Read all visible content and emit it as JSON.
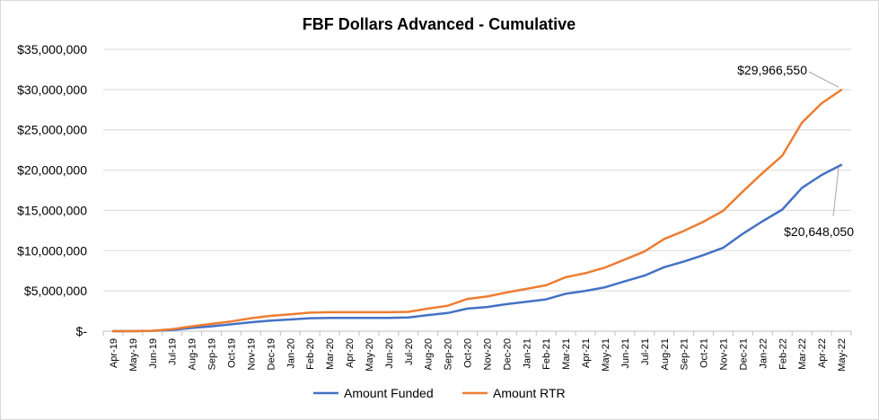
{
  "chart_data": {
    "type": "line",
    "title": "FBF Dollars Advanced - Cumulative",
    "xlabel": "",
    "ylabel": "",
    "ylim": [
      0,
      35000000
    ],
    "ytick_values": [
      0,
      5000000,
      10000000,
      15000000,
      20000000,
      25000000,
      30000000,
      35000000
    ],
    "ytick_labels": [
      "$-",
      "$5,000,000",
      "$10,000,000",
      "$15,000,000",
      "$20,000,000",
      "$25,000,000",
      "$30,000,000",
      "$35,000,000"
    ],
    "categories": [
      "Apr-19",
      "May-19",
      "Jun-19",
      "Jul-19",
      "Aug-19",
      "Sep-19",
      "Oct-19",
      "Nov-19",
      "Dec-19",
      "Jan-20",
      "Feb-20",
      "Mar-20",
      "Apr-20",
      "May-20",
      "Jun-20",
      "Jul-20",
      "Aug-20",
      "Sep-20",
      "Oct-20",
      "Nov-20",
      "Dec-20",
      "Jan-21",
      "Feb-21",
      "Mar-21",
      "Apr-21",
      "May-21",
      "Jun-21",
      "Jul-21",
      "Aug-21",
      "Sep-21",
      "Oct-21",
      "Nov-21",
      "Dec-21",
      "Jan-22",
      "Feb-22",
      "Mar-22",
      "Apr-22",
      "May-22"
    ],
    "series": [
      {
        "name": "Amount Funded",
        "color": "#4472c4",
        "values": [
          0,
          0,
          50000,
          150000,
          400000,
          600000,
          850000,
          1100000,
          1300000,
          1450000,
          1600000,
          1650000,
          1650000,
          1650000,
          1650000,
          1700000,
          2000000,
          2250000,
          2800000,
          3000000,
          3350000,
          3650000,
          3950000,
          4650000,
          5000000,
          5450000,
          6200000,
          6900000,
          7950000,
          8650000,
          9450000,
          10350000,
          12100000,
          13650000,
          15100000,
          17800000,
          19400000,
          20648050
        ]
      },
      {
        "name": "Amount RTR",
        "color": "#ed7d31",
        "values": [
          0,
          0,
          50000,
          250000,
          600000,
          900000,
          1200000,
          1600000,
          1900000,
          2100000,
          2300000,
          2350000,
          2350000,
          2350000,
          2350000,
          2400000,
          2800000,
          3150000,
          4000000,
          4300000,
          4800000,
          5250000,
          5700000,
          6700000,
          7200000,
          7900000,
          8900000,
          9900000,
          11450000,
          12450000,
          13600000,
          14950000,
          17350000,
          19650000,
          21800000,
          25900000,
          28300000,
          29966550
        ]
      }
    ],
    "annotations": [
      {
        "text": "$29,966,550",
        "series": 1,
        "index": 37
      },
      {
        "text": "$20,648,050",
        "series": 0,
        "index": 37
      }
    ],
    "legend": "bottom",
    "grid": "horizontal"
  }
}
